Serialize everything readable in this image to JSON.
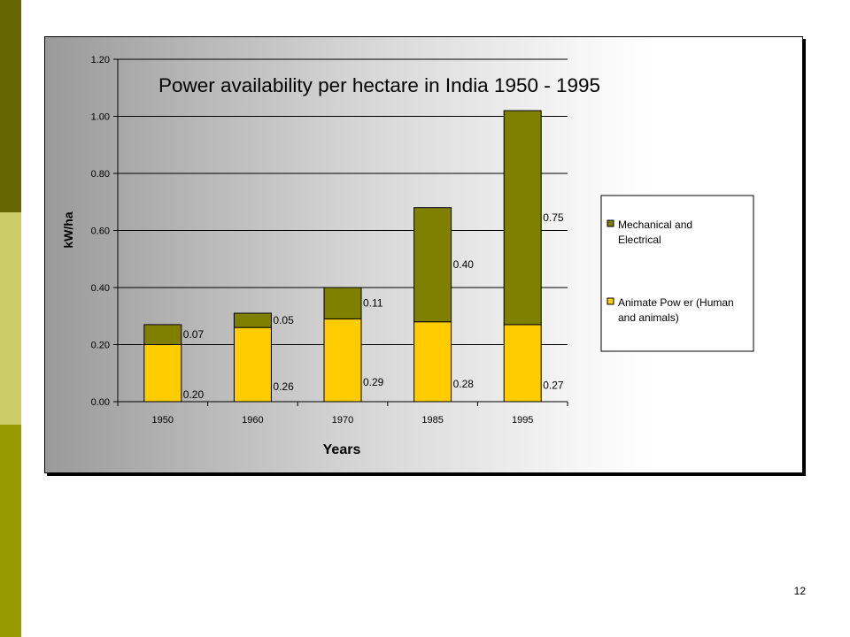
{
  "page": {
    "number": "12"
  },
  "colors": {
    "mechanical": "#808000",
    "animate": "#ffcc00",
    "slide_bar_top": "#666600",
    "slide_bar_mid": "#cccc66",
    "slide_bar_bottom": "#999900"
  },
  "chart_data": {
    "type": "bar",
    "stacked": true,
    "title": "Power availability per hectare in India 1950 - 1995",
    "xlabel": "Years",
    "ylabel": "kW/ha",
    "categories": [
      "1950",
      "1960",
      "1970",
      "1985",
      "1995"
    ],
    "ylim": [
      0,
      1.2
    ],
    "yticks": [
      "0.00",
      "0.20",
      "0.40",
      "0.60",
      "0.80",
      "1.00",
      "1.20"
    ],
    "grid": true,
    "legend_position": "right",
    "series": [
      {
        "name": "Animate Pow er (Human and animals)",
        "legend_lines": [
          "Animate Pow er (Human",
          "and animals)"
        ],
        "color": "#ffcc00",
        "values": [
          0.2,
          0.26,
          0.29,
          0.28,
          0.27
        ],
        "labels": [
          "0.20",
          "0.26",
          "0.29",
          "0.28",
          "0.27"
        ]
      },
      {
        "name": "Mechanical and Electrical",
        "legend_lines": [
          "Mechanical and",
          "Electrical"
        ],
        "color": "#808000",
        "values": [
          0.07,
          0.05,
          0.11,
          0.4,
          0.75
        ],
        "labels": [
          "0.07",
          "0.05",
          "0.11",
          "0.40",
          "0.75"
        ]
      }
    ]
  }
}
